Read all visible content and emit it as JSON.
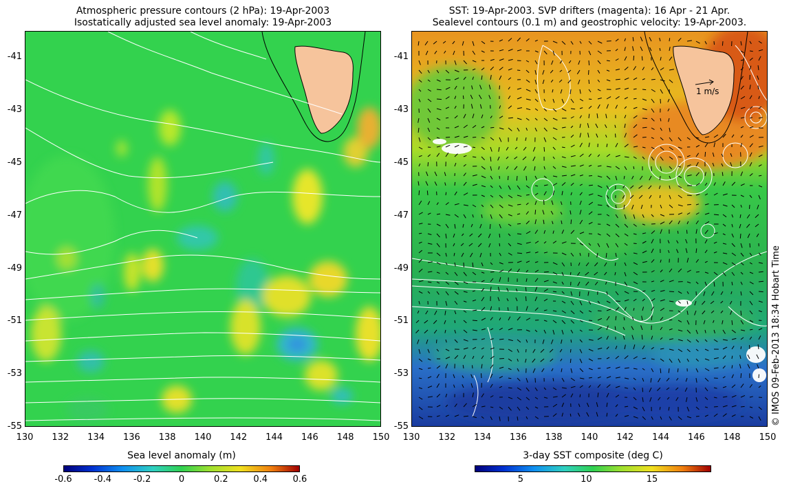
{
  "left_panel": {
    "title_line1": "Atmospheric pressure contours (2 hPa): 19-Apr-2003",
    "title_line2": "Isostatically adjusted sea level anomaly: 19-Apr-2003",
    "colorbar_label": "Sea level anomaly (m)",
    "colorbar_ticks": [
      "-0.6",
      "-0.4",
      "-0.2",
      "0",
      "0.2",
      "0.4",
      "0.6"
    ],
    "colorbar_range": [
      -0.6,
      0.6
    ]
  },
  "right_panel": {
    "title_line1": "SST: 19-Apr-2003. SVP drifters (magenta): 16 Apr - 21 Apr.",
    "title_line2": "Sealevel contours (0.1 m) and geostrophic velocity: 19-Apr-2003.",
    "colorbar_label": "3-day SST composite (deg C)",
    "colorbar_ticks": [
      "5",
      "10",
      "15"
    ],
    "colorbar_range": [
      1.5,
      19.5
    ],
    "velocity_scale_label": "1 m/s"
  },
  "axes": {
    "lon_range": [
      130,
      150
    ],
    "lat_range": [
      -55,
      -40
    ],
    "lon_ticks": [
      "130",
      "132",
      "134",
      "136",
      "138",
      "140",
      "142",
      "144",
      "146",
      "148",
      "150"
    ],
    "lat_ticks": [
      "-41",
      "-43",
      "-45",
      "-47",
      "-49",
      "-51",
      "-53",
      "-55"
    ]
  },
  "credit": "© IMOS 09-Feb-2013 18:34 Hobart Time",
  "colors": {
    "land": "#f6c49c",
    "contour": "#ffffff",
    "coast": "#000000",
    "sla_zero": "#2ed650",
    "sst_mid": "#30c050"
  }
}
